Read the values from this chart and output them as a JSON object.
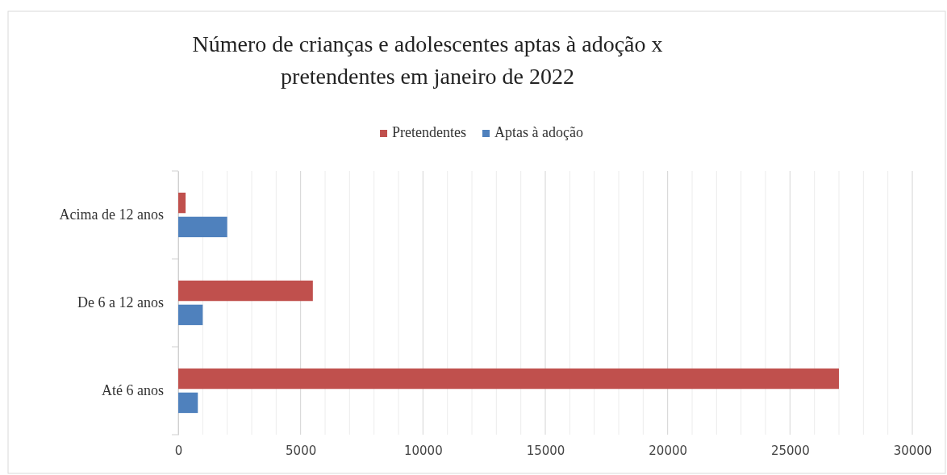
{
  "chart_data": {
    "type": "bar",
    "orientation": "horizontal",
    "title": "Número de crianças e adolescentes aptas à adoção x pretendentes em janeiro  de 2022",
    "categories": [
      "Acima de 12 anos",
      "De 6 a 12 anos",
      "Até 6 anos"
    ],
    "series": [
      {
        "name": "Pretendentes",
        "color": "#c0504d",
        "values": [
          300,
          5500,
          27000
        ]
      },
      {
        "name": "Aptas à adoção",
        "color": "#4f81bd",
        "values": [
          2000,
          1000,
          800
        ]
      }
    ],
    "xlim": [
      0,
      30000
    ],
    "xticks": [
      0,
      {
        "value": 1000,
        "label": null
      },
      {
        "value": 2000,
        "label": null
      },
      {
        "value": 3000,
        "label": null
      },
      {
        "value": 4000,
        "label": null
      },
      5000,
      {
        "value": 6000,
        "label": null
      },
      {
        "value": 7000,
        "label": null
      },
      {
        "value": 8000,
        "label": null
      },
      {
        "value": 9000,
        "label": null
      },
      10000,
      {
        "value": 11000,
        "label": null
      },
      {
        "value": 12000,
        "label": null
      },
      {
        "value": 13000,
        "label": null
      },
      {
        "value": 14000,
        "label": null
      },
      15000,
      {
        "value": 16000,
        "label": null
      },
      {
        "value": 17000,
        "label": null
      },
      {
        "value": 18000,
        "label": null
      },
      {
        "value": 19000,
        "label": null
      },
      20000,
      {
        "value": 21000,
        "label": null
      },
      {
        "value": 22000,
        "label": null
      },
      {
        "value": 23000,
        "label": null
      },
      {
        "value": 24000,
        "label": null
      },
      25000,
      {
        "value": 26000,
        "label": null
      },
      {
        "value": 27000,
        "label": null
      },
      {
        "value": 28000,
        "label": null
      },
      {
        "value": 29000,
        "label": null
      },
      30000
    ],
    "grid": true,
    "legend": "top"
  }
}
